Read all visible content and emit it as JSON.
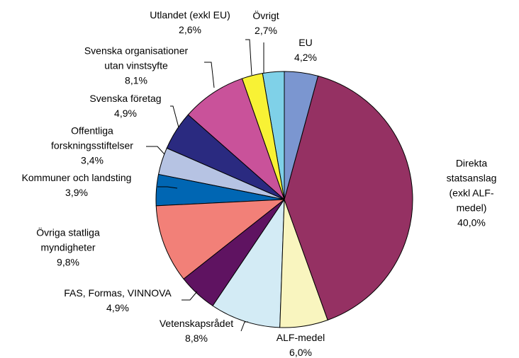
{
  "chart_data": {
    "type": "pie",
    "categories": [
      "EU",
      "Direkta statsanslag\n(exkl ALF-medel)",
      "ALF-medel",
      "Vetenskapsrådet",
      "FAS, Formas, VINNOVA",
      "Övriga statliga\nmyndigheter",
      "Kommuner och landsting",
      "Offentliga\nforskningsstiftelser",
      "Svenska företag",
      "Svenska organisationer\nutan vinstsyfte",
      "Utlandet (exkl EU)",
      "Övrigt"
    ],
    "values": [
      4.2,
      40.0,
      6.0,
      8.8,
      4.9,
      9.8,
      3.9,
      3.4,
      4.9,
      8.1,
      2.6,
      2.7
    ],
    "value_labels": [
      "4,2%",
      "40,0%",
      "6,0%",
      "8,8%",
      "4,9%",
      "9,8%",
      "3,9%",
      "3,4%",
      "4,9%",
      "8,1%",
      "2,6%",
      "2,7%"
    ],
    "colors": [
      "#7b96d0",
      "#953163",
      "#f9f5bf",
      "#d3ebf5",
      "#5f1361",
      "#f28078",
      "#0066b3",
      "#b6c3e3",
      "#2a2a80",
      "#c9529a",
      "#f8f235",
      "#7fd1e8"
    ]
  }
}
